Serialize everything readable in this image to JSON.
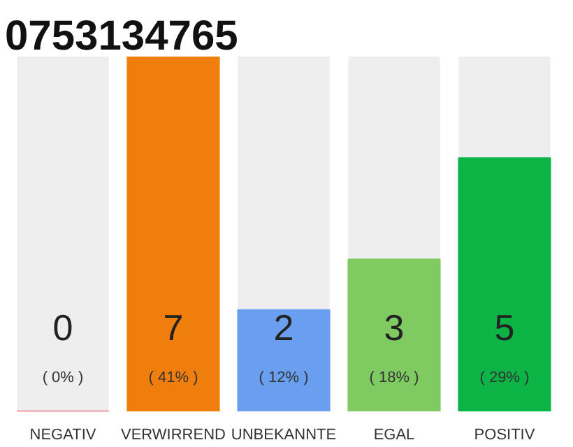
{
  "chart_data": {
    "type": "bar",
    "title": "0753134765",
    "categories": [
      "NEGATIV",
      "VERWIRREND",
      "UNBEKANNTE",
      "EGAL",
      "POSITIV"
    ],
    "values": [
      0,
      7,
      2,
      3,
      5
    ],
    "colors": [
      "#e8283c",
      "#f07e0c",
      "#6a9ff0",
      "#7fcb62",
      "#0cb446"
    ],
    "ylim": [
      0,
      7
    ],
    "data_labels": true,
    "grid": false,
    "annotations": [
      "( 0% )",
      "( 41% )",
      "( 12% )",
      "( 18% )",
      "( 29% )"
    ]
  }
}
